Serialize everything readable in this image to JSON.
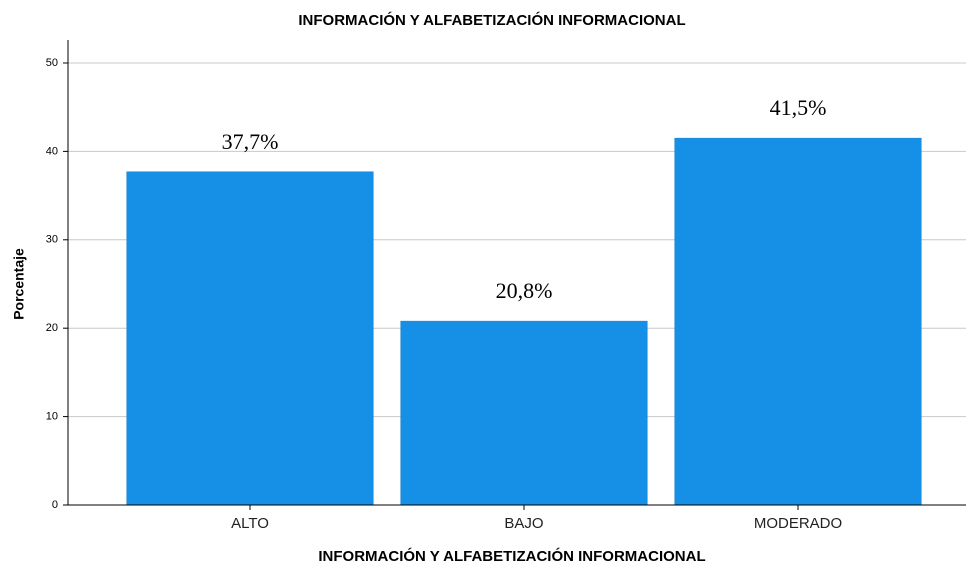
{
  "chart_data": {
    "type": "bar",
    "title": "INFORMACIÓN Y ALFABETIZACIÓN INFORMACIONAL",
    "x_label": "INFORMACIÓN Y ALFABETIZACIÓN INFORMACIONAL",
    "y_label": "Porcentaje",
    "categories": [
      "ALTO",
      "BAJO",
      "MODERADO"
    ],
    "values": [
      37.7,
      20.8,
      41.5
    ],
    "value_labels": [
      "37,7%",
      "20,8%",
      "41,5%"
    ],
    "color": "#1590e6",
    "ylim": [
      0,
      52.6
    ],
    "yticks": [
      0,
      10,
      20,
      30,
      40,
      50
    ],
    "grid": true
  }
}
